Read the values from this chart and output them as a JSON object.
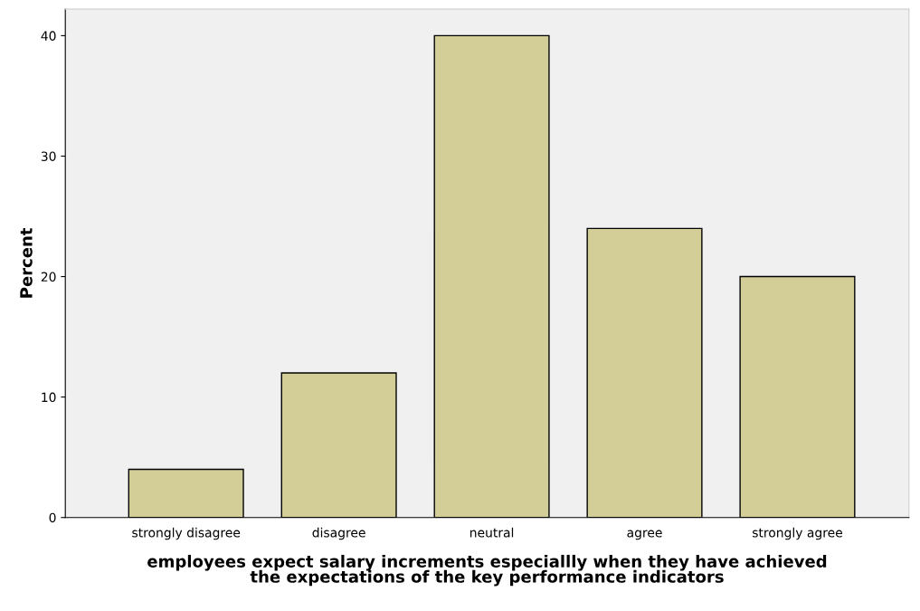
{
  "chart_data": {
    "type": "bar",
    "xlabel": "employees expect salary increments especiallly when they have achieved\nthe expectations of the key performance indicators",
    "ylabel": "Percent",
    "categories": [
      "strongly disagree",
      "disagree",
      "neutral",
      "agree",
      "strongly agree"
    ],
    "values": [
      4,
      12,
      40,
      24,
      20
    ],
    "color": "#d3cd97",
    "ylim": [
      0,
      42.2
    ],
    "yticks": [
      0,
      10,
      20,
      30,
      40
    ],
    "grid": false,
    "legend": false
  }
}
